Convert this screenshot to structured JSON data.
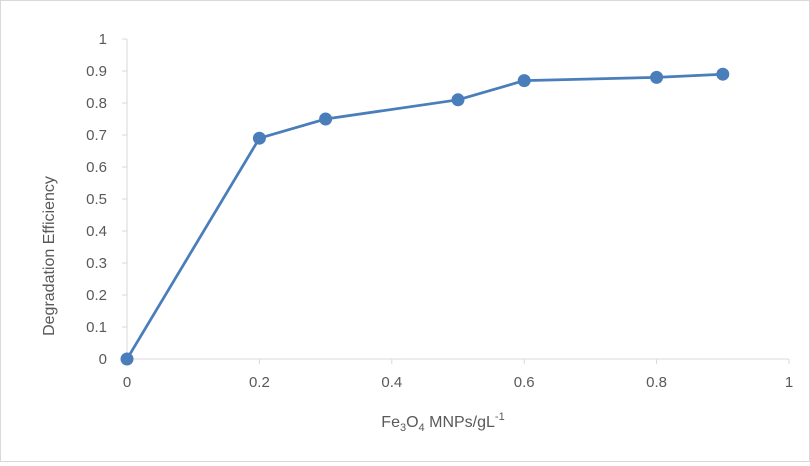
{
  "chart_data": {
    "type": "line",
    "title": "",
    "xlabel": {
      "base": "Fe",
      "sub1": "3",
      "mid": "O",
      "sub2": "4",
      "tail": " MNPs/gL",
      "sup": "-1"
    },
    "ylabel": "Degradation Efficiency",
    "xlim": [
      0,
      1
    ],
    "ylim": [
      0,
      1
    ],
    "x_ticks": [
      "0",
      "0.2",
      "0.4",
      "0.6",
      "0.8",
      "1"
    ],
    "y_ticks": [
      "0",
      "0.1",
      "0.2",
      "0.3",
      "0.4",
      "0.5",
      "0.6",
      "0.7",
      "0.8",
      "0.9",
      "1"
    ],
    "grid": false,
    "legend": "none",
    "series": [
      {
        "x": [
          0,
          0.2,
          0.3,
          0.5,
          0.6,
          0.8,
          0.9
        ],
        "y": [
          0,
          0.69,
          0.75,
          0.81,
          0.87,
          0.88,
          0.89
        ],
        "color": "#4a7ebb"
      }
    ],
    "axis_color": "#d9d9d9"
  }
}
